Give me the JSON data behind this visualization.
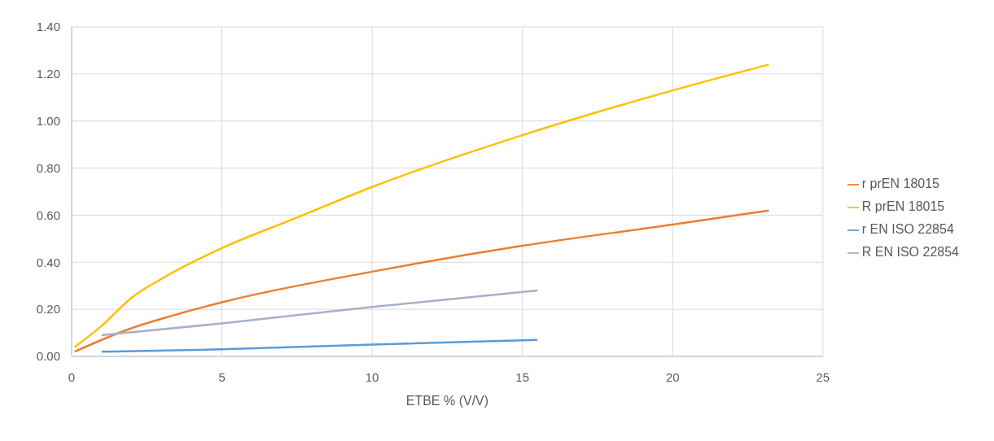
{
  "chart_data": {
    "type": "line",
    "xlabel": "ETBE % (V/V)",
    "xlim": [
      0,
      25
    ],
    "xticks": [
      0,
      5,
      10,
      15,
      20,
      25
    ],
    "ylim": [
      0,
      1.4
    ],
    "yticks": [
      {
        "value": 0,
        "label": "0.00"
      },
      {
        "value": 0.2,
        "label": "0.20"
      },
      {
        "value": 0.4,
        "label": "0.40"
      },
      {
        "value": 0.6,
        "label": "0.60"
      },
      {
        "value": 0.8,
        "label": "0.80"
      },
      {
        "value": 1.0,
        "label": "1.00"
      },
      {
        "value": 1.2,
        "label": "1.20"
      },
      {
        "value": 1.4,
        "label": "1.40"
      }
    ],
    "grid": true,
    "legend": "right",
    "marker": "none",
    "series": [
      {
        "name": "r prEN 18015",
        "color": "#ed7d31",
        "x": [
          0.1,
          1,
          2,
          3,
          5,
          10,
          15,
          20,
          23.2
        ],
        "values": [
          0.02,
          0.07,
          0.12,
          0.16,
          0.23,
          0.36,
          0.47,
          0.56,
          0.62
        ]
      },
      {
        "name": "R prEN 18015",
        "color": "#ffc000",
        "x": [
          0.1,
          1,
          2,
          3,
          5,
          7.5,
          10,
          15,
          20,
          23.2
        ],
        "values": [
          0.04,
          0.13,
          0.25,
          0.33,
          0.46,
          0.59,
          0.72,
          0.94,
          1.13,
          1.24
        ]
      },
      {
        "name": "r EN ISO 22854",
        "color": "#5b9bd5",
        "x": [
          1,
          5,
          10,
          15.5
        ],
        "values": [
          0.02,
          0.03,
          0.05,
          0.07
        ]
      },
      {
        "name": "R EN ISO 22854",
        "color": "#a5b1c8",
        "x": [
          1,
          5,
          10,
          15.5
        ],
        "values": [
          0.09,
          0.14,
          0.21,
          0.28
        ]
      }
    ]
  }
}
